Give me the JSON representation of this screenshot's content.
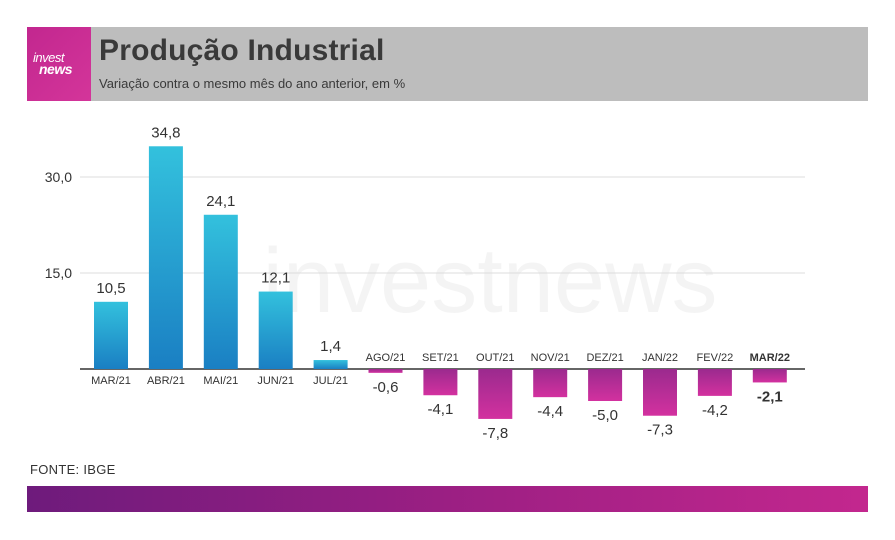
{
  "header": {
    "logo_line1": "invest",
    "logo_line2": "news",
    "title": "Produção Industrial",
    "subtitle": "Variação contra o mesmo mês do ano anterior, em %"
  },
  "source": "FONTE: IBGE",
  "watermark": "investnews",
  "colors": {
    "positive_top": "#33c1dd",
    "positive_bottom": "#1a7fc3",
    "negative_top": "#9b2a8e",
    "negative_bottom": "#d3319f",
    "header_bg": "#bdbdbd",
    "logo_bg": "#c2278f"
  },
  "chart_data": {
    "type": "bar",
    "title": "Produção Industrial",
    "subtitle": "Variação contra o mesmo mês do ano anterior, em %",
    "categories": [
      "MAR/21",
      "ABR/21",
      "MAI/21",
      "JUN/21",
      "JUL/21",
      "AGO/21",
      "SET/21",
      "OUT/21",
      "NOV/21",
      "DEZ/21",
      "JAN/22",
      "FEV/22",
      "MAR/22"
    ],
    "values": [
      10.5,
      34.8,
      24.1,
      12.1,
      1.4,
      -0.6,
      -4.1,
      -7.8,
      -4.4,
      -5.0,
      -7.3,
      -4.2,
      -2.1
    ],
    "value_labels": [
      "10,5",
      "34,8",
      "24,1",
      "12,1",
      "1,4",
      "-0,6",
      "-4,1",
      "-7,8",
      "-4,4",
      "-5,0",
      "-7,3",
      "-4,2",
      "-2,1"
    ],
    "yticks": [
      15.0,
      30.0
    ],
    "ytick_labels": [
      "15,0",
      "30,0"
    ],
    "ylim": [
      -9,
      37
    ],
    "highlight_last": true,
    "grid": true,
    "xlabel": "",
    "ylabel": ""
  }
}
